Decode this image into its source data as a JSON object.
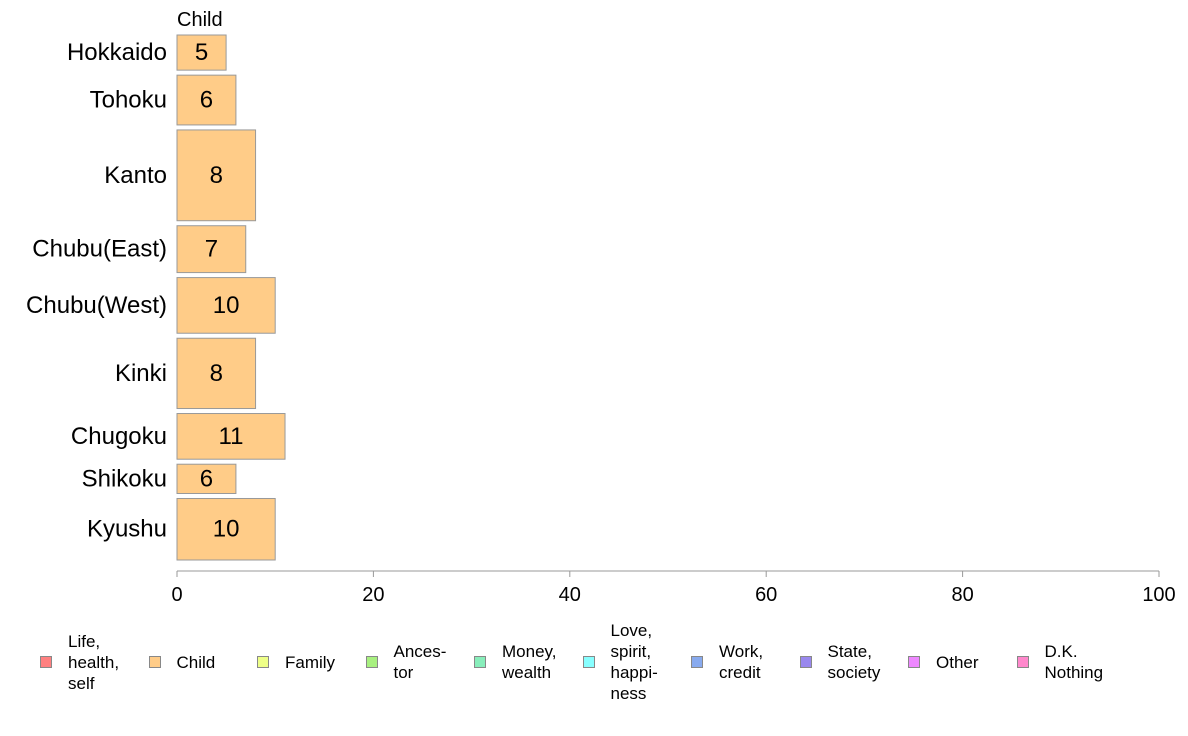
{
  "chart_data": {
    "type": "bar",
    "orientation": "horizontal",
    "series_title": "Child",
    "categories": [
      "Hokkaido",
      "Tohoku",
      "Kanto",
      "Chubu(East)",
      "Chubu(West)",
      "Kinki",
      "Chugoku",
      "Shikoku",
      "Kyushu"
    ],
    "values": [
      5,
      6,
      8,
      7,
      10,
      8,
      11,
      6,
      10
    ],
    "bar_thickness_relative": [
      0.6,
      0.85,
      1.55,
      0.8,
      0.95,
      1.2,
      0.78,
      0.5,
      1.05
    ],
    "xlim": [
      0,
      100
    ],
    "xticks": [
      "0",
      "20",
      "40",
      "60",
      "80",
      "100"
    ],
    "bar_color": "#ffcc88",
    "bar_edge_color": "#999999",
    "axis_color": "#999999"
  },
  "legend": {
    "items": [
      {
        "label": "Life,\nhealth,\nself",
        "color": "#ff8080"
      },
      {
        "label": "Child",
        "color": "#ffcc88"
      },
      {
        "label": "Family",
        "color": "#eeff88"
      },
      {
        "label": "Ances-\ntor",
        "color": "#a8f080"
      },
      {
        "label": "Money,\nwealth",
        "color": "#88eebb"
      },
      {
        "label": "Love,\nspirit,\nhappi-\nness",
        "color": "#88ffff"
      },
      {
        "label": "Work,\ncredit",
        "color": "#88aaee"
      },
      {
        "label": "State,\nsociety",
        "color": "#9988ee"
      },
      {
        "label": "Other",
        "color": "#ee88ff"
      },
      {
        "label": "D.K.\nNothing",
        "color": "#ff88cc"
      }
    ]
  }
}
